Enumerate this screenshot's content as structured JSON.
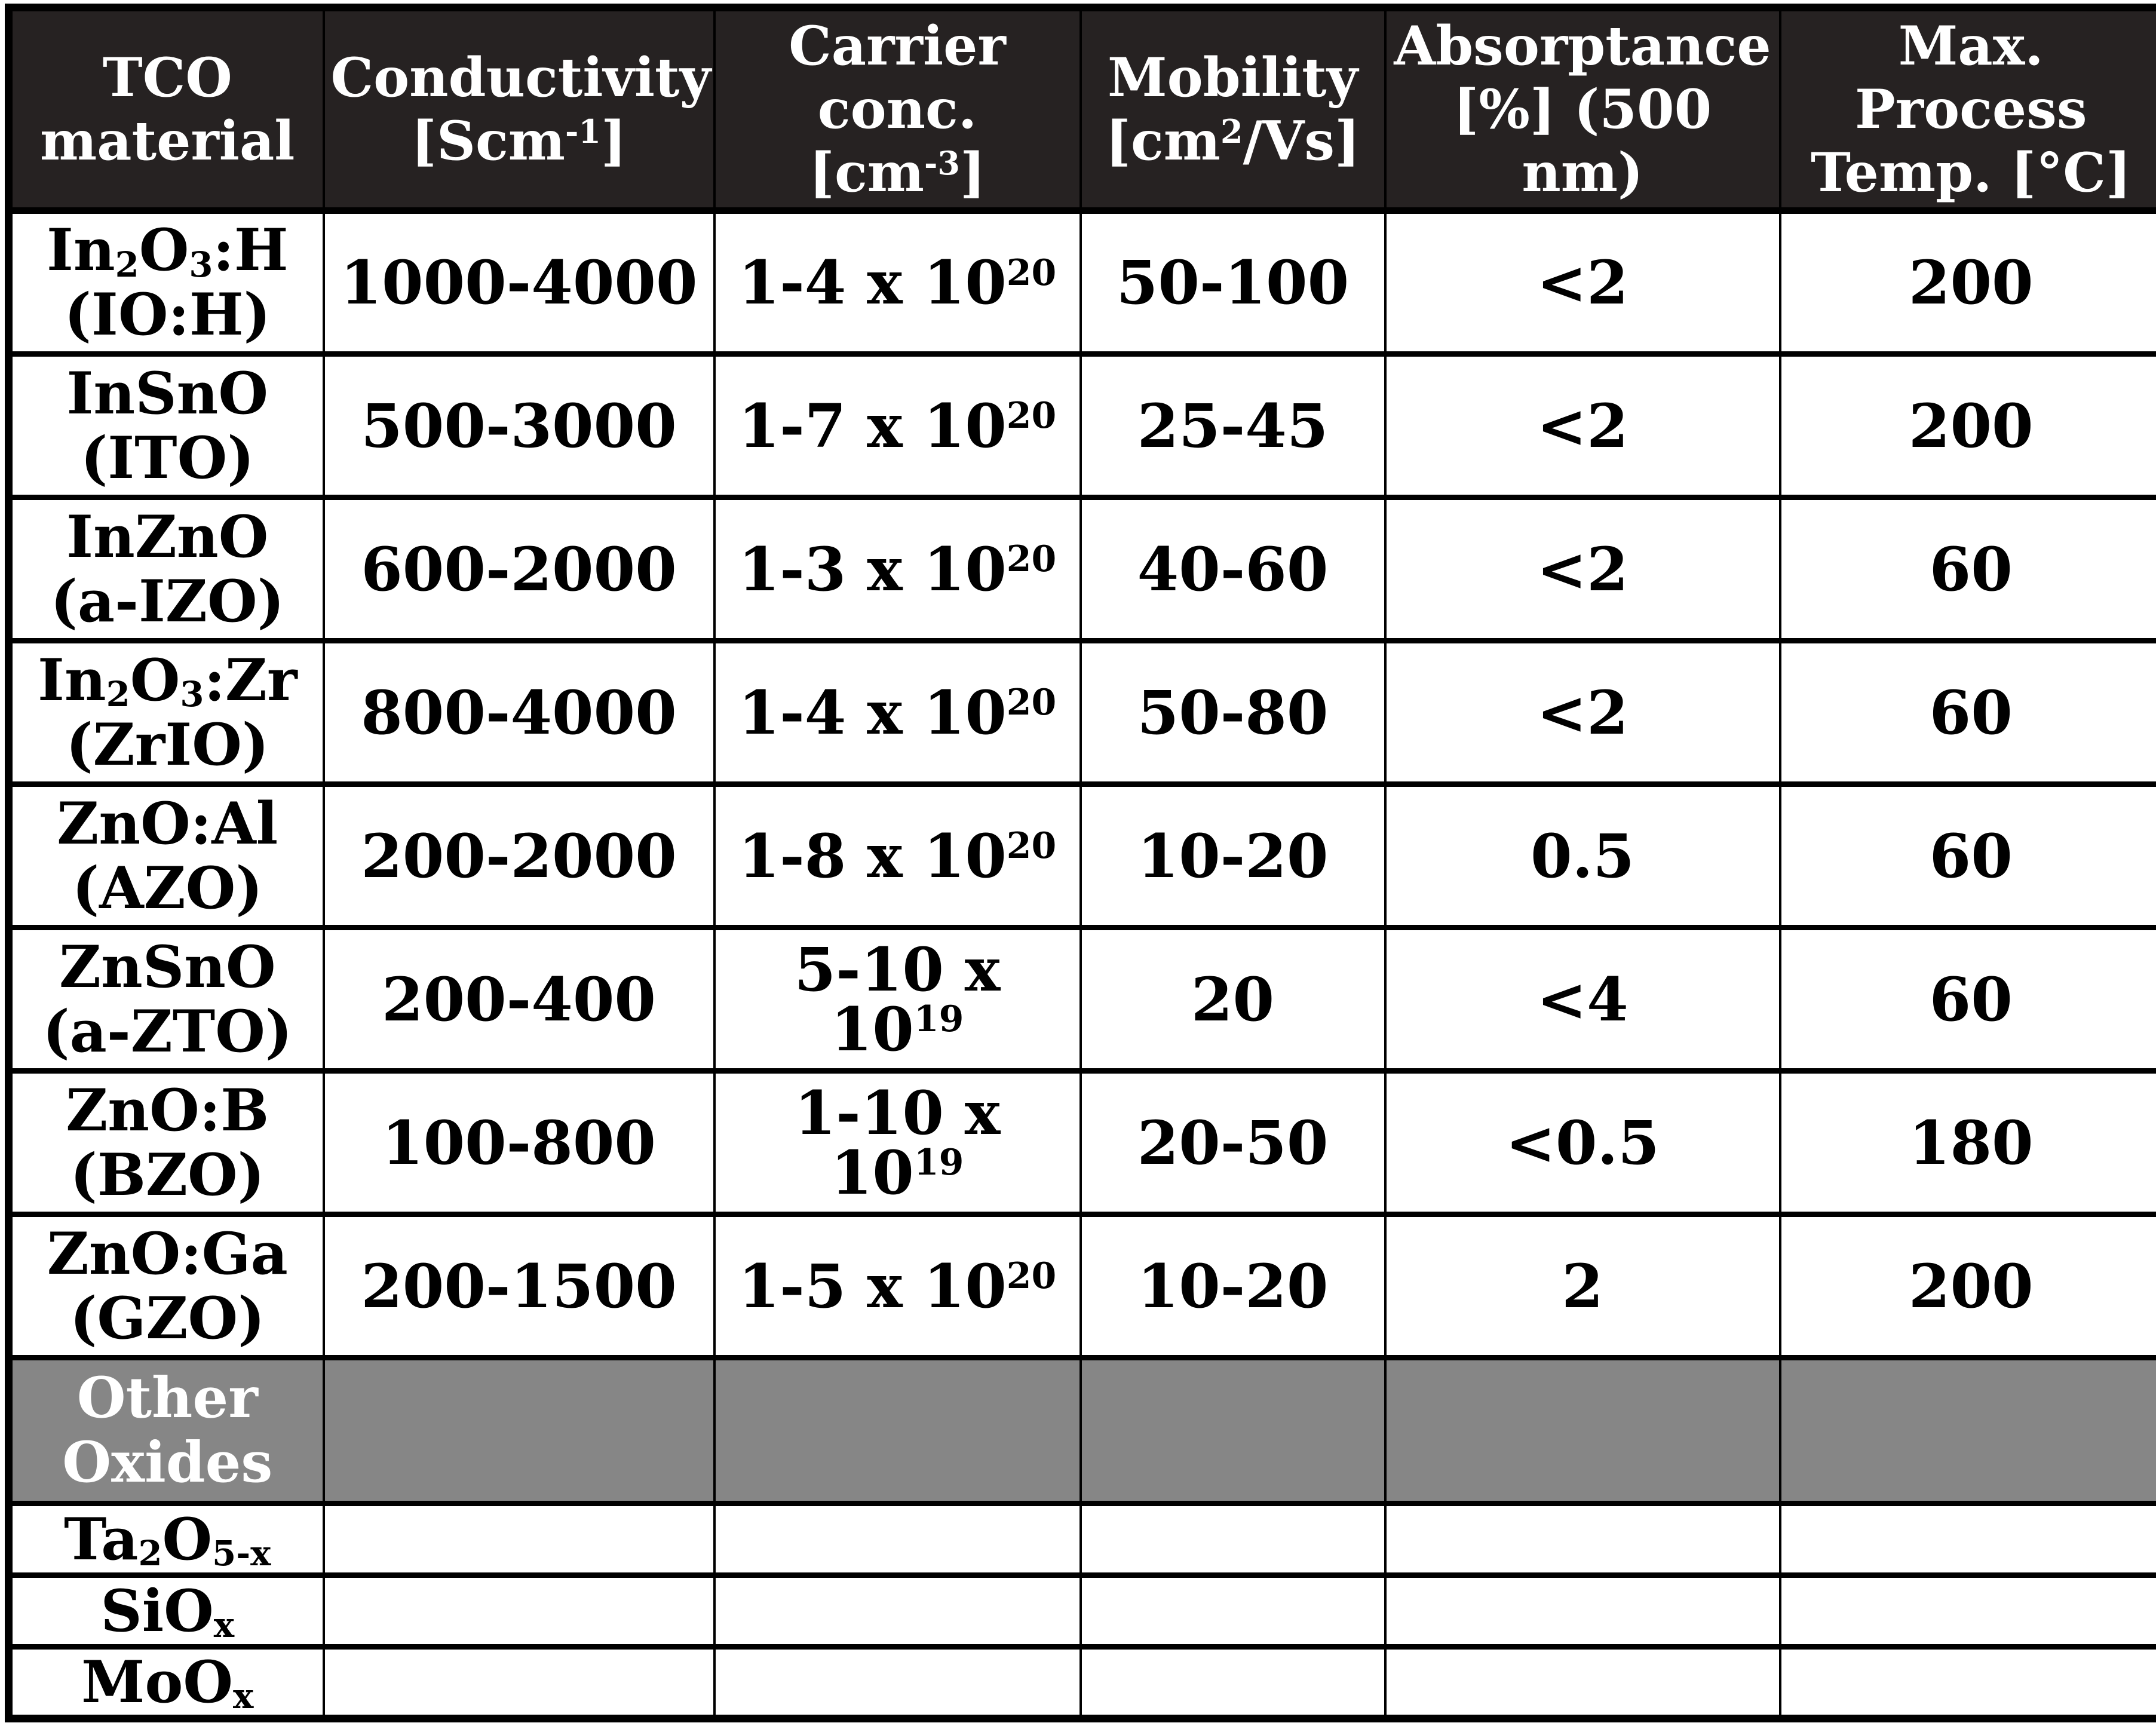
{
  "table": {
    "header": [
      "TCO\nmaterial",
      "Conductivity\n[Scm^{-1}]",
      "Carrier\nconc.\n[cm^{-3}]",
      "Mobility\n[cm^{2}/Vs]",
      "Absorptance\n[%] (500 nm)",
      "Max.\nProcess\nTemp. [°C]"
    ],
    "rows": [
      {
        "material": "In_{2}O_{3}:H\n(IO:H)",
        "conductivity": "1000-4000",
        "carrier_conc": "1-4 x 10^{20}",
        "mobility": "50-100",
        "absorptance": "<2",
        "max_temp": "200"
      },
      {
        "material": "InSnO\n(ITO)",
        "conductivity": "500-3000",
        "carrier_conc": "1-7 x 10^{20}",
        "mobility": "25-45",
        "absorptance": "<2",
        "max_temp": "200"
      },
      {
        "material": "InZnO\n(a-IZO)",
        "conductivity": "600-2000",
        "carrier_conc": "1-3 x 10^{20}",
        "mobility": "40-60",
        "absorptance": "<2",
        "max_temp": "60"
      },
      {
        "material": "In_{2}O_{3}:Zr\n(ZrIO)",
        "conductivity": "800-4000",
        "carrier_conc": "1-4 x 10^{20}",
        "mobility": "50-80",
        "absorptance": "<2",
        "max_temp": "60"
      },
      {
        "material": "ZnO:Al\n(AZO)",
        "conductivity": "200-2000",
        "carrier_conc": "1-8 x 10^{20}",
        "mobility": "10-20",
        "absorptance": "0.5",
        "max_temp": "60"
      },
      {
        "material": "ZnSnO\n(a-ZTO)",
        "conductivity": "200-400",
        "carrier_conc": "5-10 x 10^{19}",
        "mobility": "20",
        "absorptance": "<4",
        "max_temp": "60"
      },
      {
        "material": "ZnO:B\n(BZO)",
        "conductivity": "100-800",
        "carrier_conc": "1-10 x 10^{19}",
        "mobility": "20-50",
        "absorptance": "<0.5",
        "max_temp": "180"
      },
      {
        "material": "ZnO:Ga\n(GZO)",
        "conductivity": "200-1500",
        "carrier_conc": "1-5 x 10^{20}",
        "mobility": "10-20",
        "absorptance": "2",
        "max_temp": "200"
      }
    ],
    "section_row": {
      "label": "Other\nOxides"
    },
    "other_rows": [
      {
        "material": "Ta_{2}O_{5-x}"
      },
      {
        "material": "SiO_{x}"
      },
      {
        "material": "MoO_{x}"
      }
    ]
  },
  "colors": {
    "header_bg": "#262222",
    "header_text": "#ffffff",
    "section_bg": "#868686",
    "section_text": "#ffffff",
    "body_bg": "#ffffff",
    "cell_bg": "#ffffff",
    "text": "#000000",
    "border": "#000000"
  }
}
